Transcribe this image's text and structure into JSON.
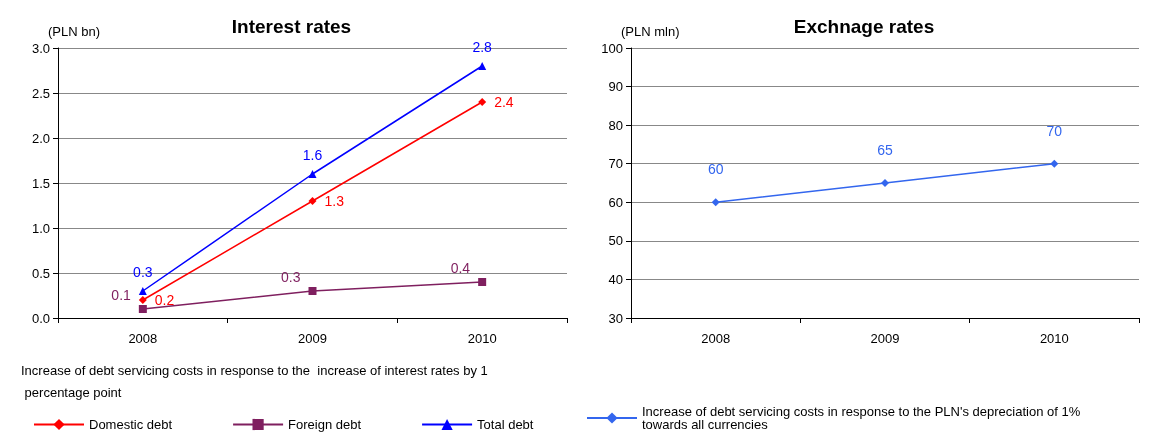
{
  "chart_data": [
    {
      "type": "line",
      "title": "Interest rates",
      "ylabel": "(PLN bn)",
      "legend_title": "Increase of debt servicing costs in response to the  increase of interest rates by 1 percentage point",
      "categories": [
        "2008",
        "2009",
        "2010"
      ],
      "series": [
        {
          "name": "Domestic debt",
          "color": "#ff0000",
          "marker": "diamond",
          "values": [
            0.2,
            1.3,
            2.4
          ]
        },
        {
          "name": "Foreign debt",
          "color": "#7f1f5f",
          "marker": "square",
          "values": [
            0.1,
            0.3,
            0.4
          ]
        },
        {
          "name": "Total debt",
          "color": "#0000ff",
          "marker": "triangle",
          "values": [
            0.3,
            1.6,
            2.8
          ]
        }
      ],
      "ylim": [
        0,
        3
      ],
      "yticks": [
        {
          "value": 0,
          "label": "0.0"
        },
        {
          "value": 0.5,
          "label": "0.5"
        },
        {
          "value": 1,
          "label": "1.0"
        },
        {
          "value": 1.5,
          "label": "1.5"
        },
        {
          "value": 2,
          "label": "2.0"
        },
        {
          "value": 2.5,
          "label": "2.5"
        },
        {
          "value": 3,
          "label": "3.0"
        }
      ],
      "grid": "y",
      "legend": "bottom",
      "data_labels": true
    },
    {
      "type": "line",
      "title": "Exchnage rates",
      "ylabel": "(PLN mln)",
      "categories": [
        "2008",
        "2009",
        "2010"
      ],
      "series": [
        {
          "name": "Increase of debt servicing costs in response to the PLN's depreciation of 1% towards all currencies",
          "color": "#3366ee",
          "marker": "diamond",
          "values": [
            60,
            65,
            70
          ]
        }
      ],
      "ylim": [
        30,
        100
      ],
      "yticks": [
        30,
        40,
        50,
        60,
        70,
        80,
        90,
        100
      ],
      "grid": "y",
      "legend": "bottom",
      "data_labels": true
    }
  ]
}
